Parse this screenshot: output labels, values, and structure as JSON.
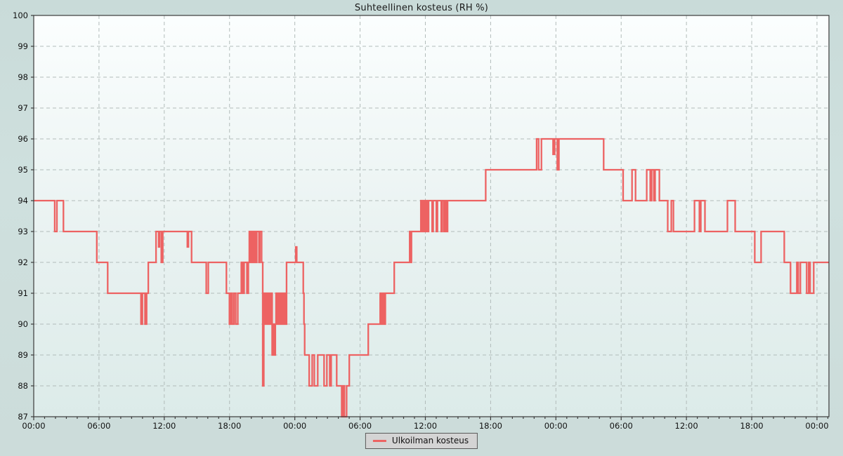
{
  "title": "Suhteellinen kosteus (RH %)",
  "legend": {
    "label": "Ulkoilman kosteus"
  },
  "colors": {
    "line": "#ed6262",
    "plot_bg_top": "#fbfefe",
    "plot_bg_bottom": "#dcebe9",
    "outer_bg": "#cfe0de",
    "grid": "#b2bcba",
    "axis": "#3b3b3b",
    "legend_bg": "#d4d4d4"
  },
  "chart_data": {
    "type": "line",
    "line_style": "step-post",
    "title": "Suhteellinen kosteus (RH %)",
    "xlabel": "",
    "ylabel": "",
    "ylim": [
      87,
      100
    ],
    "xlim_hours": [
      0,
      73.1
    ],
    "grid": "dashed, on all integer RH values and every 6 hours",
    "legend_position": "bottom-center-outside",
    "y_ticks": [
      87,
      88,
      89,
      90,
      91,
      92,
      93,
      94,
      95,
      96,
      97,
      98,
      99,
      100
    ],
    "x_ticks": [
      {
        "hour": 0,
        "label": "00:00"
      },
      {
        "hour": 6,
        "label": "06:00"
      },
      {
        "hour": 12,
        "label": "12:00"
      },
      {
        "hour": 18,
        "label": "18:00"
      },
      {
        "hour": 24,
        "label": "00:00"
      },
      {
        "hour": 30,
        "label": "06:00"
      },
      {
        "hour": 36,
        "label": "12:00"
      },
      {
        "hour": 42,
        "label": "18:00"
      },
      {
        "hour": 48,
        "label": "00:00"
      },
      {
        "hour": 54,
        "label": "06:00"
      },
      {
        "hour": 60,
        "label": "12:00"
      },
      {
        "hour": 66,
        "label": "18:00"
      },
      {
        "hour": 72,
        "label": "00:00"
      }
    ],
    "minor_x_ticks_every_hours": 1,
    "series": [
      {
        "name": "Ulkoilman kosteus",
        "unit": "RH %",
        "points_t_hours_value": [
          [
            0,
            94
          ],
          [
            1.93,
            93
          ],
          [
            2.13,
            94
          ],
          [
            2.73,
            93
          ],
          [
            5.8,
            92
          ],
          [
            6.8,
            91
          ],
          [
            9.86,
            90
          ],
          [
            9.99,
            91
          ],
          [
            10.23,
            90
          ],
          [
            10.38,
            91
          ],
          [
            10.53,
            92
          ],
          [
            11.24,
            93
          ],
          [
            11.48,
            92.5
          ],
          [
            11.56,
            93
          ],
          [
            11.73,
            92
          ],
          [
            11.86,
            93
          ],
          [
            14.12,
            92.5
          ],
          [
            14.22,
            93
          ],
          [
            14.51,
            92
          ],
          [
            15.86,
            91
          ],
          [
            16.05,
            92
          ],
          [
            17.71,
            91
          ],
          [
            17.99,
            90
          ],
          [
            18.12,
            91
          ],
          [
            18.25,
            90
          ],
          [
            18.41,
            91
          ],
          [
            18.57,
            90
          ],
          [
            18.76,
            91
          ],
          [
            19.08,
            92
          ],
          [
            19.21,
            91
          ],
          [
            19.34,
            92
          ],
          [
            19.6,
            91
          ],
          [
            19.73,
            92
          ],
          [
            19.82,
            93
          ],
          [
            19.92,
            92
          ],
          [
            20.02,
            93
          ],
          [
            20.12,
            92
          ],
          [
            20.25,
            93
          ],
          [
            20.37,
            92
          ],
          [
            20.5,
            93
          ],
          [
            20.7,
            92
          ],
          [
            20.79,
            93
          ],
          [
            20.95,
            92
          ],
          [
            21.05,
            88
          ],
          [
            21.15,
            91
          ],
          [
            21.24,
            90
          ],
          [
            21.34,
            91
          ],
          [
            21.44,
            90
          ],
          [
            21.53,
            91
          ],
          [
            21.66,
            90
          ],
          [
            21.79,
            91
          ],
          [
            21.92,
            89
          ],
          [
            22.02,
            90
          ],
          [
            22.11,
            89
          ],
          [
            22.21,
            90
          ],
          [
            22.27,
            91
          ],
          [
            22.37,
            90
          ],
          [
            22.47,
            91
          ],
          [
            22.56,
            90
          ],
          [
            22.66,
            91
          ],
          [
            22.76,
            90
          ],
          [
            22.85,
            91
          ],
          [
            22.95,
            90
          ],
          [
            23.05,
            91
          ],
          [
            23.14,
            90
          ],
          [
            23.24,
            92
          ],
          [
            24.09,
            92.5
          ],
          [
            24.18,
            92
          ],
          [
            24.78,
            91
          ],
          [
            24.84,
            90
          ],
          [
            24.91,
            89
          ],
          [
            25.32,
            88
          ],
          [
            25.6,
            89
          ],
          [
            25.79,
            88
          ],
          [
            26.11,
            89
          ],
          [
            26.69,
            88
          ],
          [
            26.95,
            89
          ],
          [
            27.21,
            88
          ],
          [
            27.34,
            89
          ],
          [
            27.85,
            88
          ],
          [
            28.31,
            87
          ],
          [
            28.43,
            88
          ],
          [
            28.56,
            87
          ],
          [
            28.76,
            88
          ],
          [
            29.01,
            89
          ],
          [
            30.75,
            90
          ],
          [
            31.85,
            91
          ],
          [
            31.98,
            90
          ],
          [
            32.11,
            91
          ],
          [
            32.21,
            90
          ],
          [
            32.32,
            91
          ],
          [
            33.14,
            92
          ],
          [
            34.56,
            93
          ],
          [
            34.62,
            92
          ],
          [
            34.72,
            93
          ],
          [
            35.59,
            94
          ],
          [
            35.72,
            93
          ],
          [
            35.82,
            94
          ],
          [
            35.91,
            93
          ],
          [
            36.04,
            94
          ],
          [
            36.17,
            93
          ],
          [
            36.3,
            94
          ],
          [
            36.62,
            93
          ],
          [
            36.72,
            94
          ],
          [
            37.01,
            93
          ],
          [
            37.11,
            94
          ],
          [
            37.46,
            93
          ],
          [
            37.56,
            94
          ],
          [
            37.72,
            93
          ],
          [
            37.85,
            94
          ],
          [
            37.95,
            93
          ],
          [
            38.04,
            94
          ],
          [
            41.55,
            95
          ],
          [
            46.23,
            96
          ],
          [
            46.41,
            95
          ],
          [
            46.67,
            96
          ],
          [
            47.74,
            95.5
          ],
          [
            47.89,
            96
          ],
          [
            48.13,
            95
          ],
          [
            48.28,
            96
          ],
          [
            52.39,
            95
          ],
          [
            54.18,
            94
          ],
          [
            55.0,
            95
          ],
          [
            55.32,
            94
          ],
          [
            56.35,
            95
          ],
          [
            56.67,
            94
          ],
          [
            56.8,
            95
          ],
          [
            57.0,
            94
          ],
          [
            57.12,
            95
          ],
          [
            57.51,
            94
          ],
          [
            58.28,
            93
          ],
          [
            58.61,
            94
          ],
          [
            58.8,
            93
          ],
          [
            60.74,
            94
          ],
          [
            61.19,
            93
          ],
          [
            61.32,
            94
          ],
          [
            61.7,
            93
          ],
          [
            63.77,
            94
          ],
          [
            64.48,
            93
          ],
          [
            66.28,
            92
          ],
          [
            66.86,
            93
          ],
          [
            68.99,
            92
          ],
          [
            69.57,
            91
          ],
          [
            70.15,
            92
          ],
          [
            70.28,
            91
          ],
          [
            70.47,
            92
          ],
          [
            71.05,
            91
          ],
          [
            71.24,
            92
          ],
          [
            71.37,
            91
          ],
          [
            71.7,
            92
          ],
          [
            73.1,
            92
          ]
        ]
      }
    ]
  },
  "layout_note_visible_plot_frame": "solid dark border on all four sides"
}
